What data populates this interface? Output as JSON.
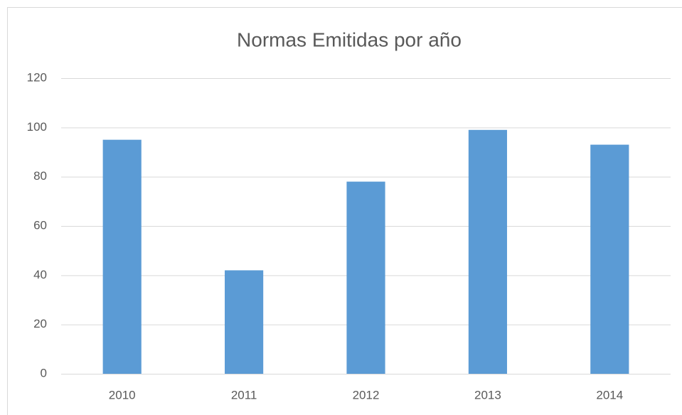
{
  "chart_data": {
    "type": "bar",
    "title": "Normas Emitidas por año",
    "categories": [
      "2010",
      "2011",
      "2012",
      "2013",
      "2014"
    ],
    "values": [
      95,
      42,
      78,
      99,
      93
    ],
    "color": "#5b9bd5",
    "ylim": [
      0,
      120
    ],
    "yticks": [
      0,
      20,
      40,
      60,
      80,
      100,
      120
    ],
    "grid": true
  }
}
